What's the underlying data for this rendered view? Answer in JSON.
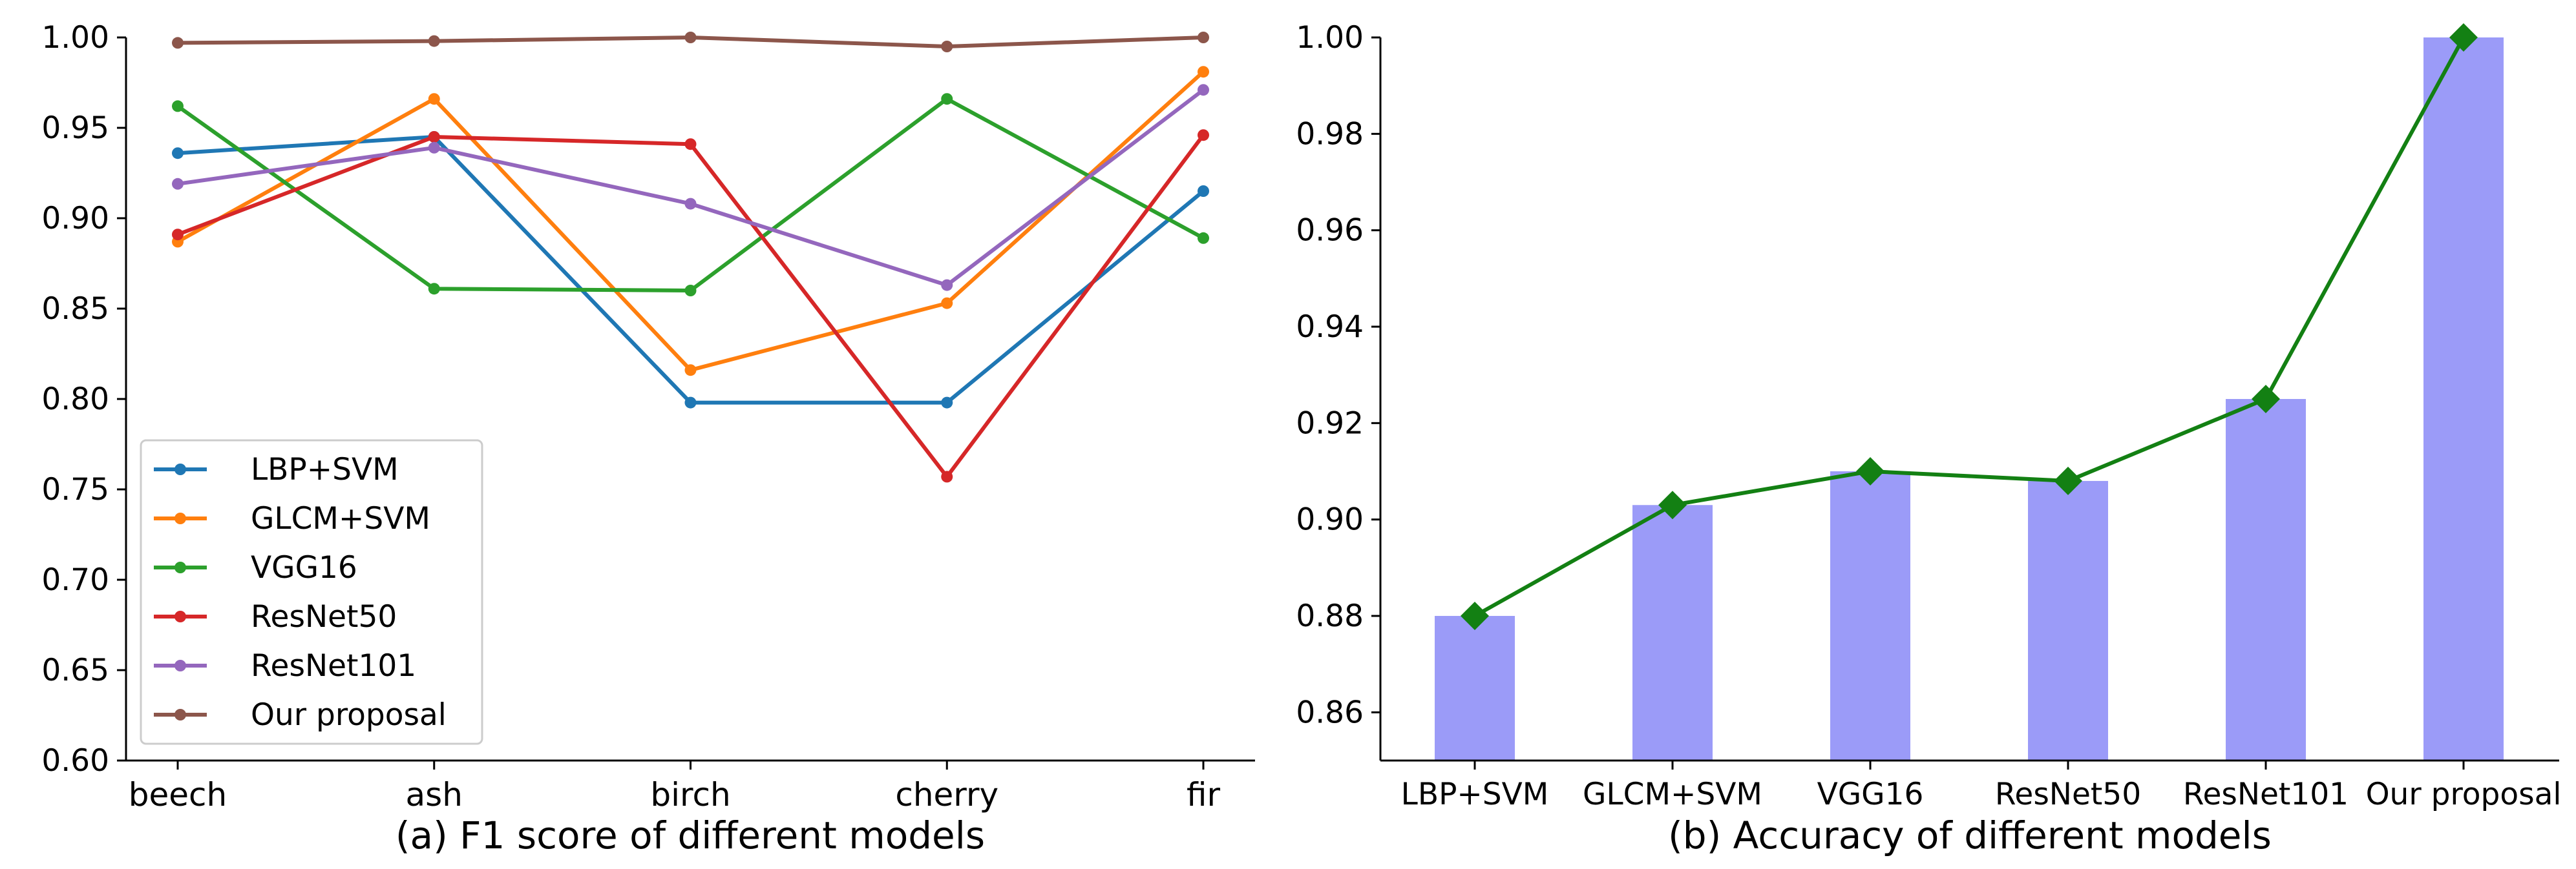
{
  "chart_data": [
    {
      "type": "line",
      "title": "(a) F1 score of different models",
      "xlabel": "",
      "ylabel": "",
      "categories": [
        "beech",
        "ash",
        "birch",
        "cherry",
        "fir"
      ],
      "ylim": [
        0.6,
        1.0
      ],
      "yticks": [
        "0.60",
        "0.65",
        "0.70",
        "0.75",
        "0.80",
        "0.85",
        "0.90",
        "0.95",
        "1.00"
      ],
      "legend_position": "lower-left",
      "grid": false,
      "series": [
        {
          "name": "LBP+SVM",
          "color": "#1f77b4",
          "values": [
            0.936,
            0.945,
            0.798,
            0.798,
            0.915
          ]
        },
        {
          "name": "GLCM+SVM",
          "color": "#ff7f0e",
          "values": [
            0.887,
            0.966,
            0.816,
            0.853,
            0.981
          ]
        },
        {
          "name": "VGG16",
          "color": "#2ca02c",
          "values": [
            0.962,
            0.861,
            0.86,
            0.966,
            0.889
          ]
        },
        {
          "name": "ResNet50",
          "color": "#d62728",
          "values": [
            0.891,
            0.945,
            0.941,
            0.757,
            0.946
          ]
        },
        {
          "name": "ResNet101",
          "color": "#9467bd",
          "values": [
            0.919,
            0.939,
            0.908,
            0.863,
            0.971
          ]
        },
        {
          "name": "Our proposal",
          "color": "#8c564b",
          "values": [
            0.997,
            0.998,
            1.0,
            0.995,
            1.0
          ]
        }
      ]
    },
    {
      "type": "bar",
      "title": "(b) Accuracy of different models",
      "xlabel": "",
      "ylabel": "",
      "categories": [
        "LBP+SVM",
        "GLCM+SVM",
        "VGG16",
        "ResNet50",
        "ResNet101",
        "Our proposal"
      ],
      "values": [
        0.88,
        0.903,
        0.91,
        0.908,
        0.925,
        1.0
      ],
      "ylim": [
        0.85,
        1.0
      ],
      "yticks": [
        "0.86",
        "0.88",
        "0.90",
        "0.92",
        "0.94",
        "0.96",
        "0.98",
        "1.00"
      ],
      "bar_color": "#9b9bf8",
      "line_color": "#138013",
      "marker": "diamond",
      "grid": false
    }
  ]
}
